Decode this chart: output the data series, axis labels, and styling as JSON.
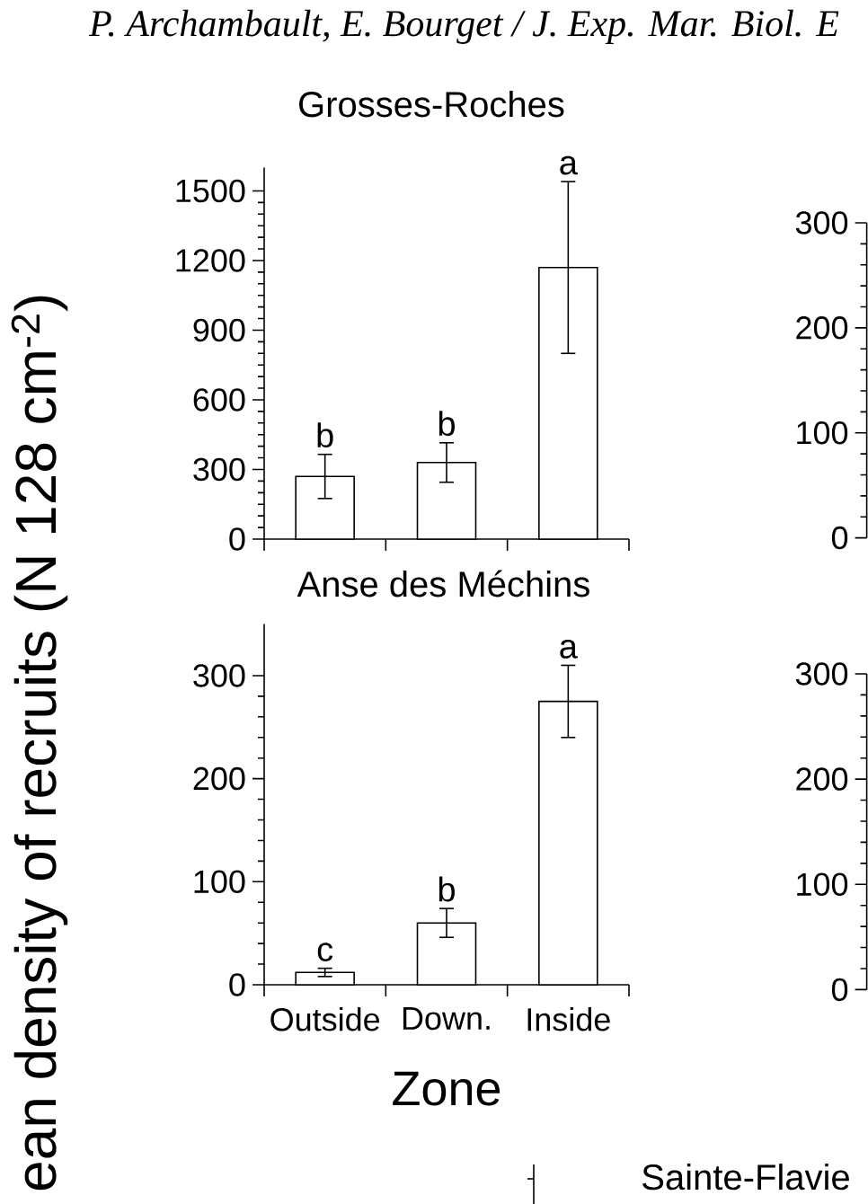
{
  "chart_data": [
    {
      "type": "bar",
      "title": "Grosses-Roches",
      "ylabel": "ean density of recruits (N 128 cm$^{-2}$)",
      "categories": [
        "Outside",
        "Down.",
        "Inside"
      ],
      "values": [
        270,
        330,
        1170
      ],
      "errors": [
        95,
        85,
        370
      ],
      "color": "#ffffff",
      "ylim": [
        0,
        1600
      ],
      "yticks": [
        0,
        300,
        600,
        900,
        1200,
        1500
      ],
      "tick_labels": "y",
      "annotations": [
        {
          "text": "b",
          "x": "Outside",
          "y": 365
        },
        {
          "text": "b",
          "x": "Down.",
          "y": 415
        },
        {
          "text": "a",
          "x": "Inside",
          "y": 1540
        },
        "P. Archambault, E. Bourget / J. Exp. Mar. Biol. E"
      ]
    },
    {
      "type": "bar",
      "title": "Anse des Méchins",
      "xlabel": "Zone",
      "categories": [
        "Outside",
        "Down.",
        "Inside"
      ],
      "values": [
        12,
        60,
        275
      ],
      "errors": [
        4,
        14,
        35
      ],
      "color": "#ffffff",
      "ylim": [
        0,
        350
      ],
      "yticks": [
        0,
        100,
        200,
        300
      ],
      "annotations": [
        {
          "text": "c",
          "x": "Outside",
          "y": 16
        },
        {
          "text": "b",
          "x": "Down.",
          "y": 74
        },
        {
          "text": "a",
          "x": "Inside",
          "y": 310
        }
      ]
    },
    {
      "type": "bar",
      "categories": [
        null,
        null,
        null
      ],
      "values": [
        null,
        null,
        null
      ],
      "ylim": [
        0,
        300
      ],
      "yticks": [
        0,
        100,
        200,
        300
      ],
      "tick_labels": "y"
    },
    {
      "type": "bar",
      "categories": [
        null,
        null,
        null
      ],
      "values": [
        null,
        null,
        null
      ],
      "ylim": [
        0,
        300
      ],
      "yticks": [
        0,
        100,
        200,
        300
      ],
      "tick_labels": "y"
    },
    {
      "type": "other",
      "title": "Sainte-Flavie"
    }
  ]
}
